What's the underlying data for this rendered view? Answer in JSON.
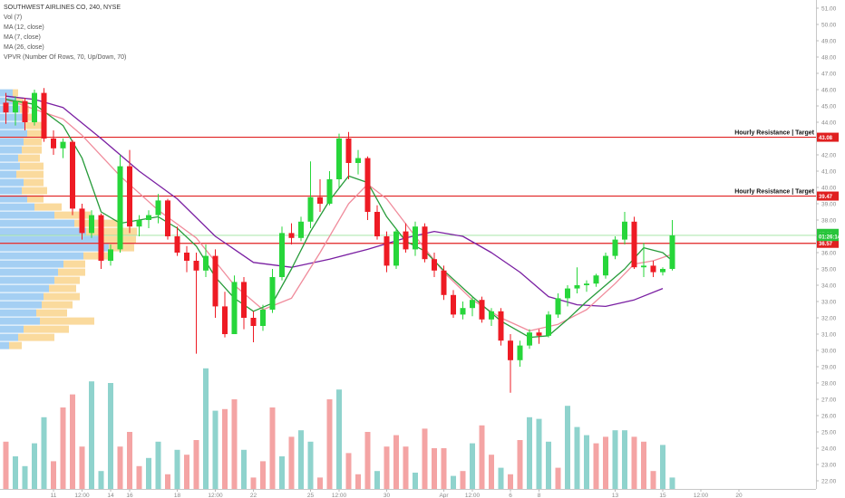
{
  "chart_data": {
    "type": "candlestick",
    "title": "SOUTHWEST AIRLINES CO, 240, NYSE",
    "indicators": [
      "Vol (7)",
      "MA (12, close)",
      "MA (7, close)",
      "MA (26, close)",
      "VPVR (Number Of Rows, 70, Up/Down, 70)"
    ],
    "y_axis": {
      "min": 21.5,
      "max": 51.5,
      "ticks": [
        "51.00",
        "50.00",
        "49.00",
        "48.00",
        "47.00",
        "46.00",
        "45.00",
        "44.00",
        "43.00",
        "42.00",
        "41.00",
        "40.00",
        "39.00",
        "38.00",
        "37.00",
        "36.00",
        "35.00",
        "34.00",
        "33.00",
        "32.00",
        "31.00",
        "30.00",
        "29.00",
        "28.00",
        "27.00",
        "26.00",
        "25.00",
        "24.00",
        "23.00",
        "22.00"
      ]
    },
    "x_axis": {
      "ticks": [
        {
          "label": "11",
          "i": 5
        },
        {
          "label": "12:00",
          "i": 8
        },
        {
          "label": "14",
          "i": 11
        },
        {
          "label": "16",
          "i": 13
        },
        {
          "label": "18",
          "i": 18
        },
        {
          "label": "12:00",
          "i": 22
        },
        {
          "label": "22",
          "i": 26
        },
        {
          "label": "25",
          "i": 32
        },
        {
          "label": "12:00",
          "i": 35
        },
        {
          "label": "30",
          "i": 40
        },
        {
          "label": "Apr",
          "i": 46
        },
        {
          "label": "12:00",
          "i": 49
        },
        {
          "label": "6",
          "i": 53
        },
        {
          "label": "8",
          "i": 56
        },
        {
          "label": "13",
          "i": 64
        },
        {
          "label": "15",
          "i": 69
        },
        {
          "label": "12:00",
          "i": 73
        },
        {
          "label": "20",
          "i": 77
        }
      ]
    },
    "candles": [
      [
        45.2,
        45.8,
        43.9,
        44.6
      ],
      [
        44.6,
        45.6,
        43.8,
        45.3
      ],
      [
        45.3,
        45.5,
        43.5,
        44.0
      ],
      [
        44.0,
        46.0,
        43.8,
        45.8
      ],
      [
        45.8,
        46.1,
        42.8,
        43.0
      ],
      [
        43.0,
        43.5,
        42.0,
        42.4
      ],
      [
        42.4,
        43.0,
        41.8,
        42.8
      ],
      [
        42.8,
        42.9,
        38.3,
        38.7
      ],
      [
        38.7,
        39.0,
        36.8,
        37.2
      ],
      [
        37.2,
        38.6,
        36.9,
        38.3
      ],
      [
        38.3,
        38.4,
        35.0,
        35.5
      ],
      [
        35.5,
        36.5,
        35.2,
        36.2
      ],
      [
        36.2,
        42.0,
        36.0,
        41.3
      ],
      [
        41.3,
        42.3,
        37.2,
        37.6
      ],
      [
        37.6,
        38.3,
        37.0,
        38.0
      ],
      [
        38.0,
        38.6,
        37.5,
        38.3
      ],
      [
        38.3,
        39.6,
        37.8,
        39.2
      ],
      [
        39.2,
        39.3,
        36.8,
        37.0
      ],
      [
        37.0,
        37.6,
        35.8,
        36.0
      ],
      [
        36.0,
        36.4,
        34.8,
        35.5
      ],
      [
        35.5,
        36.0,
        29.8,
        34.9
      ],
      [
        34.9,
        36.5,
        34.5,
        35.8
      ],
      [
        35.8,
        36.2,
        32.0,
        32.7
      ],
      [
        32.7,
        33.6,
        30.8,
        31.0
      ],
      [
        31.0,
        34.6,
        31.0,
        34.2
      ],
      [
        34.2,
        34.5,
        31.3,
        32.0
      ],
      [
        32.0,
        32.4,
        30.5,
        31.5
      ],
      [
        31.5,
        32.8,
        31.2,
        32.5
      ],
      [
        32.5,
        35.0,
        32.3,
        34.5
      ],
      [
        34.5,
        37.6,
        34.3,
        37.2
      ],
      [
        37.2,
        37.8,
        36.5,
        36.9
      ],
      [
        36.9,
        38.2,
        36.7,
        37.9
      ],
      [
        37.9,
        41.6,
        37.5,
        39.4
      ],
      [
        39.4,
        40.5,
        38.5,
        39.0
      ],
      [
        39.0,
        41.0,
        38.9,
        40.5
      ],
      [
        40.5,
        43.3,
        40.0,
        43.0
      ],
      [
        43.0,
        43.4,
        40.5,
        41.5
      ],
      [
        41.5,
        42.3,
        40.8,
        41.8
      ],
      [
        41.8,
        41.9,
        38.0,
        38.5
      ],
      [
        38.5,
        38.9,
        36.8,
        37.0
      ],
      [
        37.0,
        37.3,
        34.8,
        35.2
      ],
      [
        35.2,
        37.5,
        35.0,
        37.3
      ],
      [
        37.3,
        37.8,
        36.0,
        36.2
      ],
      [
        36.2,
        37.9,
        35.8,
        37.6
      ],
      [
        37.6,
        37.8,
        35.4,
        35.6
      ],
      [
        35.6,
        36.0,
        34.5,
        34.9
      ],
      [
        34.9,
        35.2,
        33.1,
        33.4
      ],
      [
        33.4,
        33.7,
        32.0,
        32.2
      ],
      [
        32.2,
        33.0,
        31.9,
        32.6
      ],
      [
        32.6,
        33.3,
        32.1,
        33.1
      ],
      [
        33.1,
        33.3,
        31.7,
        31.9
      ],
      [
        31.9,
        32.6,
        31.5,
        32.4
      ],
      [
        32.4,
        32.6,
        30.3,
        30.6
      ],
      [
        30.6,
        31.0,
        27.4,
        29.4
      ],
      [
        29.4,
        30.6,
        29.0,
        30.3
      ],
      [
        30.3,
        31.3,
        30.1,
        31.1
      ],
      [
        31.1,
        31.3,
        30.4,
        30.9
      ],
      [
        30.9,
        32.4,
        30.8,
        32.2
      ],
      [
        32.2,
        33.5,
        32.0,
        33.2
      ],
      [
        33.2,
        34.0,
        32.7,
        33.8
      ],
      [
        33.8,
        35.1,
        33.5,
        34.0
      ],
      [
        34.0,
        34.3,
        33.6,
        34.1
      ],
      [
        34.1,
        34.7,
        33.9,
        34.6
      ],
      [
        34.6,
        36.0,
        34.4,
        35.8
      ],
      [
        35.8,
        37.0,
        35.6,
        36.8
      ],
      [
        36.8,
        38.5,
        36.5,
        37.9
      ],
      [
        37.9,
        38.2,
        35.0,
        35.1
      ],
      [
        35.1,
        36.6,
        34.5,
        35.2
      ],
      [
        35.2,
        35.5,
        34.5,
        34.8
      ],
      [
        34.8,
        35.1,
        34.6,
        35.0
      ],
      [
        35.0,
        38.0,
        34.9,
        37.06
      ]
    ],
    "volumes": [
      [
        24.4,
        "down"
      ],
      [
        23.5,
        "up"
      ],
      [
        22.9,
        "up"
      ],
      [
        24.3,
        "up"
      ],
      [
        25.9,
        "up"
      ],
      [
        23.2,
        "down"
      ],
      [
        26.5,
        "down"
      ],
      [
        27.3,
        "down"
      ],
      [
        24.1,
        "down"
      ],
      [
        28.1,
        "up"
      ],
      [
        22.6,
        "up"
      ],
      [
        28.0,
        "up"
      ],
      [
        24.1,
        "down"
      ],
      [
        25.0,
        "down"
      ],
      [
        22.9,
        "down"
      ],
      [
        23.4,
        "up"
      ],
      [
        24.4,
        "up"
      ],
      [
        22.4,
        "down"
      ],
      [
        23.9,
        "up"
      ],
      [
        23.6,
        "down"
      ],
      [
        24.5,
        "down"
      ],
      [
        28.9,
        "up"
      ],
      [
        26.3,
        "up"
      ],
      [
        26.4,
        "down"
      ],
      [
        27.0,
        "down"
      ],
      [
        23.9,
        "up"
      ],
      [
        22.2,
        "down"
      ],
      [
        23.2,
        "down"
      ],
      [
        26.5,
        "down"
      ],
      [
        23.5,
        "up"
      ],
      [
        24.7,
        "down"
      ],
      [
        25.1,
        "up"
      ],
      [
        24.4,
        "up"
      ],
      [
        22.2,
        "down"
      ],
      [
        27.0,
        "down"
      ],
      [
        27.6,
        "up"
      ],
      [
        23.7,
        "down"
      ],
      [
        22.4,
        "down"
      ],
      [
        25.0,
        "down"
      ],
      [
        22.6,
        "up"
      ],
      [
        24.1,
        "down"
      ],
      [
        24.8,
        "down"
      ],
      [
        24.1,
        "down"
      ],
      [
        22.5,
        "up"
      ],
      [
        25.2,
        "down"
      ],
      [
        24.0,
        "down"
      ],
      [
        24.0,
        "down"
      ],
      [
        22.3,
        "up"
      ],
      [
        22.6,
        "down"
      ],
      [
        24.3,
        "up"
      ],
      [
        25.4,
        "down"
      ],
      [
        23.6,
        "down"
      ],
      [
        22.8,
        "up"
      ],
      [
        22.4,
        "down"
      ],
      [
        24.5,
        "down"
      ],
      [
        25.9,
        "up"
      ],
      [
        25.8,
        "up"
      ],
      [
        24.4,
        "up"
      ],
      [
        22.8,
        "down"
      ],
      [
        26.6,
        "up"
      ],
      [
        25.3,
        "up"
      ],
      [
        24.8,
        "up"
      ],
      [
        24.3,
        "down"
      ],
      [
        24.7,
        "down"
      ],
      [
        25.1,
        "up"
      ],
      [
        25.1,
        "up"
      ],
      [
        24.7,
        "down"
      ],
      [
        24.4,
        "down"
      ],
      [
        22.6,
        "down"
      ],
      [
        24.2,
        "up"
      ],
      [
        22.2,
        "up"
      ]
    ],
    "ma_purple": [
      [
        0,
        45.6
      ],
      [
        3,
        45.4
      ],
      [
        6,
        44.9
      ],
      [
        10,
        43.0
      ],
      [
        14,
        41.0
      ],
      [
        18,
        39.3
      ],
      [
        22,
        37.0
      ],
      [
        26,
        35.4
      ],
      [
        30,
        35.1
      ],
      [
        34,
        35.6
      ],
      [
        38,
        36.2
      ],
      [
        42,
        36.9
      ],
      [
        45,
        37.3
      ],
      [
        48,
        37.0
      ],
      [
        51,
        36.0
      ],
      [
        54,
        34.8
      ],
      [
        57,
        33.3
      ],
      [
        60,
        32.8
      ],
      [
        63,
        32.7
      ],
      [
        66,
        33.1
      ],
      [
        69,
        33.8
      ]
    ],
    "ma_pink": [
      [
        0,
        45.4
      ],
      [
        3,
        44.8
      ],
      [
        6,
        44.2
      ],
      [
        8,
        43.2
      ],
      [
        12,
        40.7
      ],
      [
        16,
        38.6
      ],
      [
        20,
        36.9
      ],
      [
        24,
        34.0
      ],
      [
        27,
        32.5
      ],
      [
        30,
        33.2
      ],
      [
        33,
        36.0
      ],
      [
        36,
        39.0
      ],
      [
        38,
        40.2
      ],
      [
        40,
        39.3
      ],
      [
        43,
        37.0
      ],
      [
        46,
        34.8
      ],
      [
        49,
        33.1
      ],
      [
        52,
        32.0
      ],
      [
        55,
        31.2
      ],
      [
        58,
        31.6
      ],
      [
        61,
        32.5
      ],
      [
        64,
        34.1
      ],
      [
        66,
        35.3
      ],
      [
        68,
        35.5
      ],
      [
        70,
        35.9
      ]
    ],
    "ma_green": [
      [
        0,
        45.4
      ],
      [
        3,
        45.1
      ],
      [
        6,
        43.8
      ],
      [
        8,
        41.8
      ],
      [
        10,
        38.5
      ],
      [
        12,
        37.8
      ],
      [
        14,
        38.0
      ],
      [
        16,
        38.2
      ],
      [
        18,
        37.5
      ],
      [
        20,
        36.4
      ],
      [
        22,
        34.5
      ],
      [
        24,
        33.2
      ],
      [
        26,
        32.4
      ],
      [
        28,
        32.9
      ],
      [
        30,
        35.0
      ],
      [
        32,
        37.3
      ],
      [
        34,
        39.2
      ],
      [
        36,
        40.7
      ],
      [
        38,
        40.3
      ],
      [
        40,
        38.2
      ],
      [
        42,
        36.7
      ],
      [
        44,
        36.1
      ],
      [
        46,
        34.9
      ],
      [
        49,
        33.3
      ],
      [
        52,
        31.8
      ],
      [
        55,
        30.8
      ],
      [
        57,
        30.9
      ],
      [
        59,
        31.9
      ],
      [
        61,
        33.0
      ],
      [
        63,
        34.0
      ],
      [
        65,
        35.0
      ],
      [
        67,
        36.3
      ],
      [
        69,
        36.0
      ],
      [
        70,
        35.5
      ]
    ],
    "horizontal_lines": [
      {
        "value": 43.08,
        "label": "Hourly Resistance | Target",
        "tag": "43.08",
        "color": "#e02020"
      },
      {
        "value": 39.47,
        "label": "Hourly Resistance | Target",
        "tag": "39.47",
        "color": "#e02020"
      },
      {
        "value": 36.57,
        "label": "",
        "tag": "36.57",
        "color": "#e02020"
      }
    ],
    "price_tags": [
      {
        "value": 37.06,
        "tag": "37.06",
        "color": "#27c43a"
      },
      {
        "value": 36.57,
        "tag": "01:26:14",
        "color": "#27c43a"
      }
    ],
    "green_ref_line": 37.06,
    "colors": {
      "up": "#27d63a",
      "down": "#ee1b24",
      "vol_up": "#8fd3cd",
      "vol_down": "#f4a4a4",
      "ma_purple": "#7a1fa2",
      "ma_pink": "#f08c9c",
      "ma_green": "#279b3a"
    },
    "vpvr": [
      [
        45.8,
        14,
        6
      ],
      [
        45.3,
        18,
        8
      ],
      [
        44.8,
        22,
        10
      ],
      [
        44.3,
        25,
        12
      ],
      [
        43.8,
        28,
        18
      ],
      [
        43.3,
        30,
        16
      ],
      [
        42.8,
        26,
        20
      ],
      [
        42.3,
        24,
        22
      ],
      [
        41.8,
        20,
        24
      ],
      [
        41.3,
        22,
        26
      ],
      [
        40.8,
        18,
        30
      ],
      [
        40.3,
        26,
        22
      ],
      [
        39.8,
        24,
        28
      ],
      [
        39.3,
        30,
        18
      ],
      [
        38.8,
        38,
        30
      ],
      [
        38.3,
        60,
        40
      ],
      [
        37.8,
        82,
        50
      ],
      [
        37.3,
        95,
        56
      ],
      [
        36.8,
        110,
        40
      ],
      [
        36.3,
        120,
        28
      ],
      [
        35.8,
        92,
        30
      ],
      [
        35.3,
        70,
        24
      ],
      [
        34.8,
        64,
        30
      ],
      [
        34.3,
        60,
        28
      ],
      [
        33.8,
        54,
        30
      ],
      [
        33.3,
        48,
        40
      ],
      [
        32.8,
        46,
        34
      ],
      [
        32.3,
        40,
        34
      ],
      [
        31.8,
        44,
        60
      ],
      [
        31.3,
        26,
        50
      ],
      [
        30.8,
        20,
        40
      ],
      [
        30.3,
        10,
        14
      ]
    ]
  }
}
